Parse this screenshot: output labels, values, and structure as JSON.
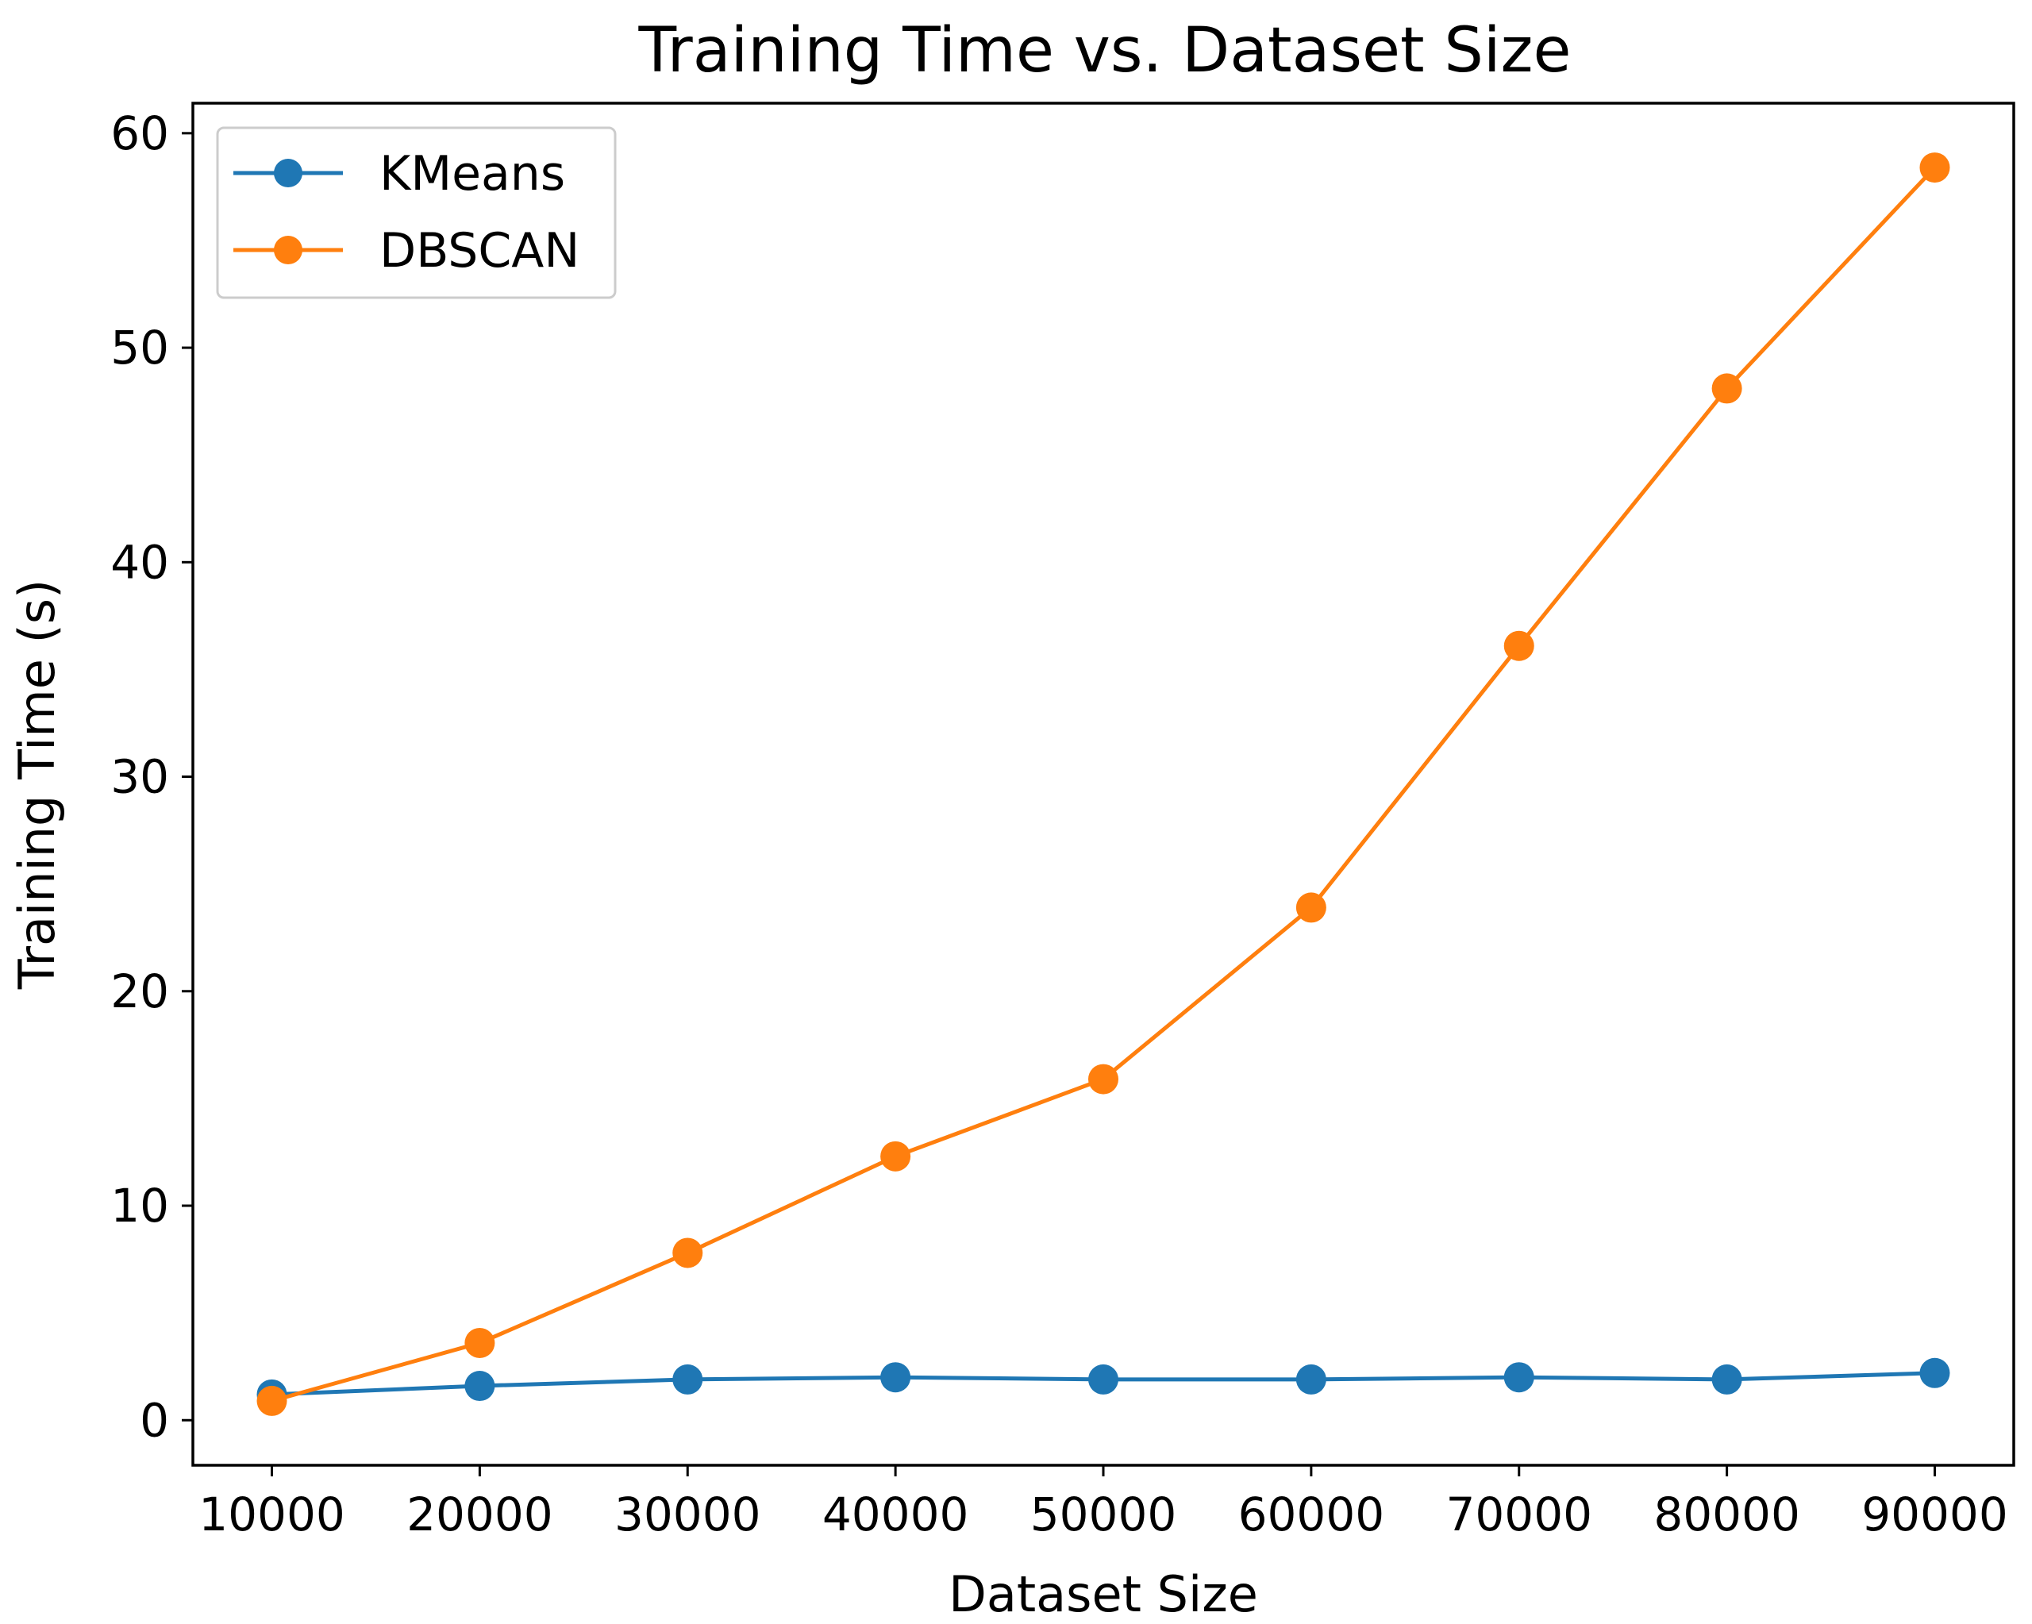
{
  "colors": {
    "background": "#ffffff",
    "axes": "#000000",
    "legend_border": "#cccccc"
  },
  "chart_data": {
    "type": "line",
    "title": "Training Time vs. Dataset Size",
    "xlabel": "Dataset Size",
    "ylabel": "Training Time (s)",
    "x": [
      10000,
      20000,
      30000,
      40000,
      50000,
      60000,
      70000,
      80000,
      90000
    ],
    "x_ticks": [
      "10000",
      "20000",
      "30000",
      "40000",
      "50000",
      "60000",
      "70000",
      "80000",
      "90000"
    ],
    "y_ticks": [
      "0",
      "10",
      "20",
      "30",
      "40",
      "50",
      "60"
    ],
    "xlim": [
      6200,
      93800
    ],
    "ylim": [
      -2.1,
      61.4
    ],
    "grid": false,
    "legend_position": "upper-left",
    "series": [
      {
        "name": "KMeans",
        "color": "#1f77b4",
        "marker": "circle",
        "values": [
          1.2,
          1.6,
          1.9,
          2.0,
          1.9,
          1.9,
          2.0,
          1.9,
          2.2
        ]
      },
      {
        "name": "DBSCAN",
        "color": "#ff7f0e",
        "marker": "circle",
        "values": [
          0.9,
          3.6,
          7.8,
          12.3,
          15.9,
          23.9,
          36.1,
          48.1,
          58.4
        ]
      }
    ]
  }
}
